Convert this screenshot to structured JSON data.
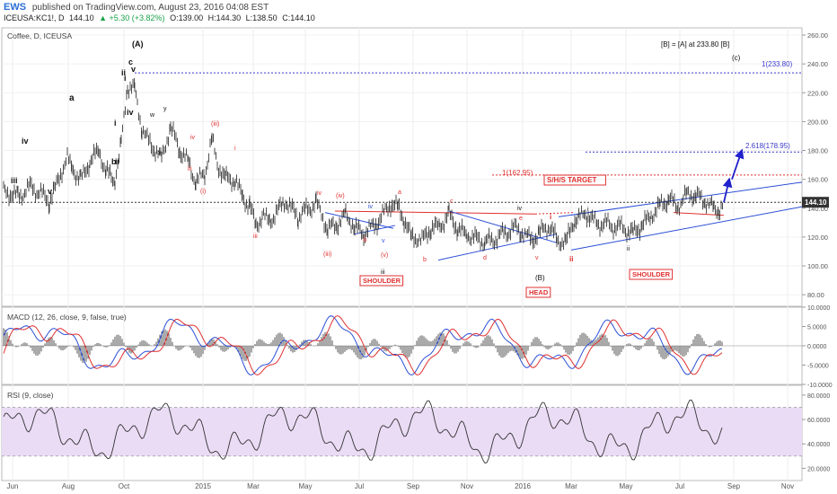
{
  "header": {
    "brand": "EWS",
    "published": "published on TradingView.com, August 23, 2016 04:08 EST",
    "symbol": "ICEUSA:KC1!, D",
    "last": "144.10",
    "change": "▲ +5.30 (+3.82%)",
    "open": "O:139.00",
    "high": "H:144.30",
    "low": "L:138.50",
    "close": "C:144.10"
  },
  "chart_data": [
    {
      "type": "line",
      "title": "Coffee, D, ICEUSA",
      "y_ticks": [
        "260.00",
        "240.00",
        "220.00",
        "200.00",
        "180.00",
        "160.00",
        "140.00",
        "120.00",
        "100.00",
        "80.00"
      ],
      "ylim": [
        72,
        265
      ],
      "x_ticks": [
        "Jun",
        "Aug",
        "Oct",
        "2015",
        "Mar",
        "May",
        "Jul",
        "Sep",
        "Nov",
        "2016",
        "Mar",
        "May",
        "Jul",
        "Sep",
        "Nov"
      ],
      "last_price_label": "144.10",
      "price_path": [
        [
          4,
          152
        ],
        [
          20,
          148
        ],
        [
          35,
          155
        ],
        [
          55,
          145
        ],
        [
          60,
          152
        ],
        [
          75,
          175
        ],
        [
          80,
          168
        ],
        [
          90,
          160
        ],
        [
          100,
          172
        ],
        [
          110,
          180
        ],
        [
          118,
          165
        ],
        [
          128,
          160
        ],
        [
          135,
          185
        ],
        [
          142,
          225
        ],
        [
          150,
          222
        ],
        [
          158,
          195
        ],
        [
          170,
          182
        ],
        [
          180,
          175
        ],
        [
          190,
          196
        ],
        [
          200,
          180
        ],
        [
          210,
          172
        ],
        [
          218,
          158
        ],
        [
          228,
          164
        ],
        [
          236,
          188
        ],
        [
          242,
          170
        ],
        [
          252,
          160
        ],
        [
          262,
          160
        ],
        [
          270,
          148
        ],
        [
          278,
          142
        ],
        [
          285,
          128
        ],
        [
          292,
          135
        ],
        [
          300,
          131
        ],
        [
          318,
          145
        ],
        [
          332,
          134
        ],
        [
          352,
          144
        ],
        [
          365,
          125
        ],
        [
          375,
          128
        ],
        [
          385,
          136
        ],
        [
          395,
          126
        ],
        [
          405,
          122
        ],
        [
          420,
          130
        ],
        [
          435,
          143
        ],
        [
          443,
          141
        ],
        [
          450,
          132
        ],
        [
          458,
          120
        ],
        [
          470,
          118
        ],
        [
          480,
          126
        ],
        [
          490,
          128
        ],
        [
          500,
          136
        ],
        [
          510,
          125
        ],
        [
          520,
          122
        ],
        [
          540,
          116
        ],
        [
          555,
          120
        ],
        [
          570,
          126
        ],
        [
          580,
          124
        ],
        [
          592,
          118
        ],
        [
          600,
          122
        ],
        [
          612,
          128
        ],
        [
          620,
          118
        ],
        [
          630,
          116
        ],
        [
          640,
          132
        ],
        [
          652,
          136
        ],
        [
          665,
          130
        ],
        [
          680,
          128
        ],
        [
          695,
          126
        ],
        [
          705,
          123
        ],
        [
          715,
          128
        ],
        [
          725,
          135
        ],
        [
          735,
          142
        ],
        [
          745,
          146
        ],
        [
          755,
          141
        ],
        [
          765,
          150
        ],
        [
          775,
          148
        ],
        [
          785,
          145
        ],
        [
          795,
          140
        ],
        [
          800,
          138
        ],
        [
          806,
          144
        ]
      ],
      "annotations": [
        {
          "text": "(A)",
          "price": 250,
          "date": "Oct"
        },
        {
          "text": "[B] = [A] at 233.80   [B]",
          "price": 250
        },
        {
          "text": "(c)",
          "price": 239
        },
        {
          "text": "1(233.80)",
          "price": 234.5
        },
        {
          "text": "2.618(178.95)",
          "price": 181
        },
        {
          "text": "1(162.95)",
          "price": 164
        },
        {
          "text": "S/H/S TARGET",
          "price": 154
        },
        {
          "text": "SHOULDER",
          "price": 95
        },
        {
          "text": "HEAD",
          "price": 82
        },
        {
          "text": "SHOULDER",
          "price": 97
        },
        {
          "text": "(B)",
          "price": 96
        },
        {
          "text": "a"
        },
        {
          "text": "b"
        },
        {
          "text": "c"
        },
        {
          "text": "d"
        },
        {
          "text": "e"
        },
        {
          "text": "i"
        },
        {
          "text": "ii"
        },
        {
          "text": "iii"
        },
        {
          "text": "iv"
        },
        {
          "text": "v"
        },
        {
          "text": "(iii)"
        },
        {
          "text": "(iv)"
        },
        {
          "text": "(v)"
        },
        {
          "text": "(i)"
        },
        {
          "text": "w"
        },
        {
          "text": "x"
        },
        {
          "text": "y"
        }
      ]
    },
    {
      "type": "line",
      "title": "MACD (12, 26, close, 9, false, true)",
      "y_ticks": [
        "10.0000",
        "5.0000",
        "0.0000",
        "-5.0000",
        "-10.0000"
      ],
      "ylim": [
        -10,
        10
      ],
      "series": [
        {
          "color": "#2c4fd6"
        },
        {
          "color": "#e03030"
        }
      ],
      "histogram": true
    },
    {
      "type": "line",
      "title": "RSI (9, close)",
      "y_ticks": [
        "80.0000",
        "60.0000",
        "40.0000",
        "20.0000"
      ],
      "ylim": [
        10,
        88
      ],
      "band": [
        30,
        70
      ],
      "colors": {
        "line": "#333333",
        "band": "#eadcf5"
      }
    }
  ]
}
